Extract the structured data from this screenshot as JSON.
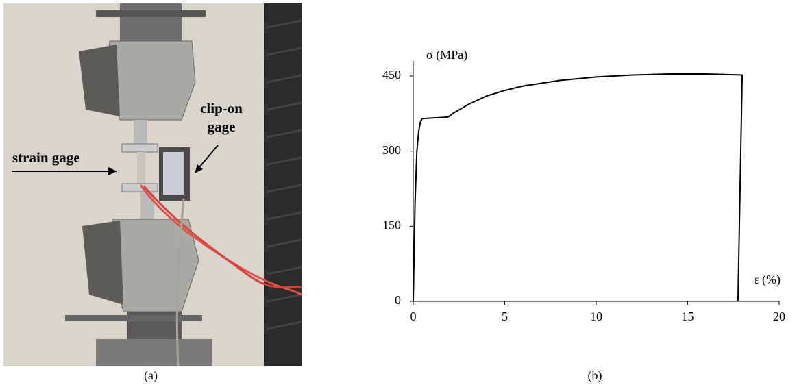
{
  "photo": {
    "strain_gage": "strain gage",
    "clip_on_gage": [
      "clip-on",
      "gage"
    ],
    "caption": "(a)"
  },
  "chart_data": {
    "type": "line",
    "caption": "(b)",
    "y_label": "σ (MPa)",
    "x_label": "ε (%)",
    "x": [
      0,
      0.05,
      0.1,
      0.2,
      0.3,
      0.4,
      0.5,
      1,
      1.5,
      1.9,
      2.2,
      3,
      4,
      5,
      6,
      8,
      10,
      12,
      14,
      16,
      17,
      17.98,
      17.75
    ],
    "values": [
      0,
      100,
      200,
      300,
      340,
      360,
      365,
      366,
      367,
      368,
      376,
      393,
      410,
      421,
      430,
      441,
      448,
      452,
      454,
      454,
      453,
      452,
      0
    ],
    "color": "#000000",
    "xlim": [
      0,
      20
    ],
    "ylim": [
      0,
      480
    ],
    "xticks": [
      0,
      5,
      10,
      15,
      20
    ],
    "yticks": [
      0,
      150,
      300,
      450
    ],
    "grid": false
  }
}
